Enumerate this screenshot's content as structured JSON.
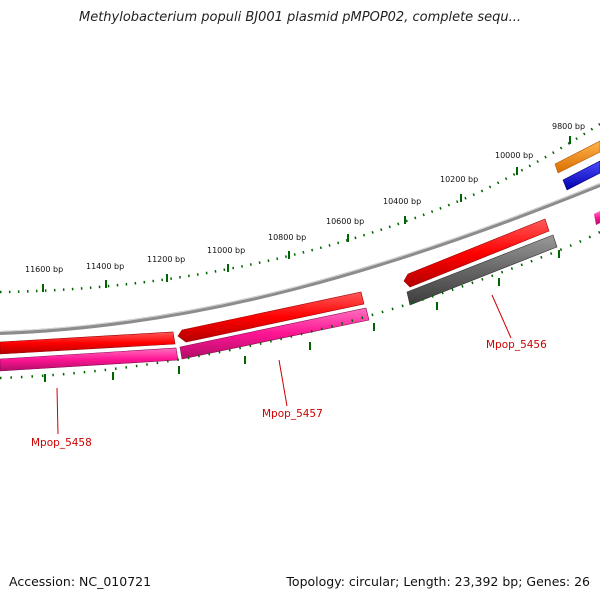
{
  "title": "Methylobacterium populi BJ001 plasmid pMPOP02, complete sequ...",
  "footer": {
    "accession": "Accession: NC_010721",
    "summary": "Topology: circular; Length: 23,392 bp; Genes: 26"
  },
  "bp_labels": [
    "9800 bp",
    "10000 bp",
    "10200 bp",
    "10400 bp",
    "10600 bp",
    "10800 bp",
    "11000 bp",
    "11200 bp",
    "11400 bp",
    "11600 bp"
  ],
  "genes": [
    {
      "name": "Mpop_5456",
      "color": "#666666"
    },
    {
      "name": "Mpop_5457",
      "color": "#ff1493"
    },
    {
      "name": "Mpop_5458",
      "color": "#ff1493"
    }
  ],
  "colors": {
    "forward_cds": "#ff0000",
    "reverse_cds": "#ff1493",
    "pseudo": "#666666",
    "orange_feature": "#ff8800",
    "blue_feature": "#0000ee",
    "ticks": "#006400",
    "backbone": "#888888"
  }
}
